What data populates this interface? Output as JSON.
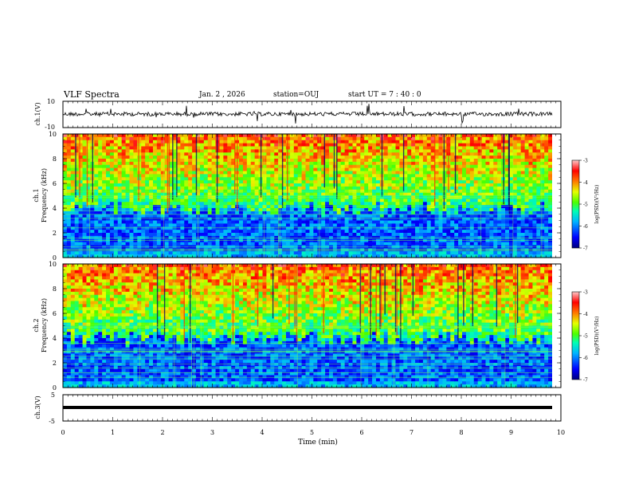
{
  "header": {
    "title": "VLF Spectra",
    "date": "Jan. 2 , 2026",
    "station": "station=OUJ",
    "start": "start UT =  7 : 40 : 0"
  },
  "chart_data": [
    {
      "type": "line",
      "name": "ch1-waveform",
      "ylabel": "ch.1(V)",
      "ylim": [
        -10,
        10
      ],
      "y_ticks": [
        "10",
        "-10"
      ],
      "xlim": [
        0,
        10
      ]
    },
    {
      "type": "heatmap",
      "name": "ch1-spectrogram",
      "ylabel": "ch.1\nFrequency (kHz)",
      "ylim": [
        0,
        10
      ],
      "y_ticks": [
        "0",
        "2",
        "4",
        "6",
        "8",
        "10"
      ],
      "xlim": [
        0,
        10
      ],
      "colorbar": {
        "label": "log(PSD)(V²/Hz)",
        "range": [
          -7,
          -3
        ],
        "ticks": [
          "-3",
          "-4",
          "-5",
          "-6",
          "-7"
        ]
      }
    },
    {
      "type": "heatmap",
      "name": "ch2-spectrogram",
      "ylabel": "ch.2\nFrequency (kHz)",
      "ylim": [
        0,
        10
      ],
      "y_ticks": [
        "0",
        "2",
        "4",
        "6",
        "8",
        "10"
      ],
      "xlim": [
        0,
        10
      ],
      "colorbar": {
        "label": "log(PSD)(V²/Hz)",
        "range": [
          -7,
          -3
        ],
        "ticks": [
          "-3",
          "-4",
          "-5",
          "-6",
          "-7"
        ]
      }
    },
    {
      "type": "line",
      "name": "ch3-waveform",
      "ylabel": "ch.3(V)",
      "ylim": [
        -5,
        5
      ],
      "y_ticks": [
        "5",
        "-5"
      ],
      "xlim": [
        0,
        10
      ],
      "xlabel": "Time (min)",
      "x_ticks": [
        "0",
        "1",
        "2",
        "3",
        "4",
        "5",
        "6",
        "7",
        "8",
        "9",
        "10"
      ]
    }
  ],
  "colors": {
    "axis": "#000000",
    "colormap": [
      "#00007f",
      "#0000ff",
      "#00b4ff",
      "#00ffb4",
      "#4cff00",
      "#e6ff00",
      "#ff7800",
      "#ff0000",
      "#ffc8c8"
    ]
  }
}
